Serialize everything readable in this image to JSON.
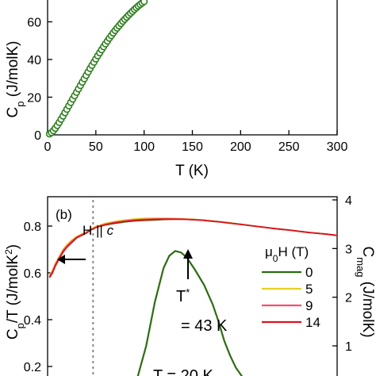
{
  "chart_data": [
    {
      "type": "scatter",
      "panel_label": "",
      "xlabel": "T (K)",
      "ylabel_main": "C",
      "ylabel_sub": "p",
      "ylabel_rest": " (J/molK)",
      "ylabel_visible": "C",
      "xlim": [
        0,
        300
      ],
      "ylim": [
        0,
        80
      ],
      "x_ticks": [
        0,
        50,
        100,
        150,
        200,
        250,
        300
      ],
      "y_ticks": [
        0,
        20,
        40,
        60
      ],
      "marker_color": "#2e7d1e",
      "series": [
        {
          "x": [
            2,
            4,
            6,
            8,
            10,
            12,
            14,
            16,
            18,
            20,
            22,
            24,
            26,
            28,
            30,
            32,
            34,
            36,
            38,
            40,
            42,
            44,
            46,
            48,
            50,
            52,
            54,
            56,
            58,
            60,
            62,
            64,
            66,
            68,
            70,
            72,
            74,
            76,
            78,
            80,
            82,
            84,
            86,
            88,
            90,
            92,
            94,
            96,
            98,
            100
          ],
          "y": [
            0.5,
            1.2,
            2.2,
            3.5,
            5.0,
            6.6,
            8.3,
            10.0,
            11.8,
            13.6,
            15.4,
            17.2,
            19.0,
            20.8,
            22.6,
            24.4,
            26.2,
            28.0,
            29.8,
            31.6,
            33.4,
            35.2,
            36.9,
            38.6,
            40.3,
            42.0,
            43.6,
            45.2,
            46.8,
            48.3,
            49.8,
            51.3,
            52.7,
            54.1,
            55.4,
            56.7,
            57.9,
            59.1,
            60.3,
            61.4,
            62.5,
            63.6,
            64.6,
            65.6,
            66.6,
            67.5,
            68.4,
            69.2,
            70.0,
            70.8
          ]
        }
      ]
    },
    {
      "type": "line",
      "panel_label": "(b)",
      "field_label_prefix": "H || ",
      "field_label_axis": "c",
      "xlim": [
        0,
        300
      ],
      "ylim": [
        0.1,
        0.9
      ],
      "y2lim": [
        0,
        4
      ],
      "y_ticks": [
        0.2,
        0.4,
        0.6,
        0.8
      ],
      "y2_ticks": [
        1,
        2,
        3,
        4
      ],
      "ylabel": "C_p/T (J/molK^2)",
      "ylabel_visible": "C",
      "y2label": "C_mag (J/molK)",
      "y2label_visible": "C",
      "legend_title": "μ0H (T)",
      "legend_position": "right",
      "dashed_line_x": 43,
      "annotation_arrow": "T*",
      "annotation_arrow_sup": "*",
      "annotation_arrow_main": "T",
      "annotation_value": "= 43 K",
      "annotation_bottom": "T = 20 K",
      "x": [
        2,
        5,
        8,
        12,
        16,
        20,
        25,
        30,
        35,
        40,
        45,
        50,
        55,
        60,
        70,
        80,
        90,
        100,
        110,
        120,
        130,
        140,
        150,
        160,
        170,
        180,
        190,
        200,
        210,
        220,
        230,
        240,
        250,
        260,
        270,
        280,
        290,
        300
      ],
      "series": [
        {
          "name": "0",
          "color": "#2e6b14",
          "values": [
            0.58,
            0.6,
            0.63,
            0.66,
            0.69,
            0.71,
            0.73,
            0.75,
            0.76,
            0.77,
            0.785,
            0.795,
            0.8,
            0.805,
            0.812,
            0.818,
            0.822,
            0.824,
            0.826,
            0.828,
            0.829,
            0.829,
            0.828,
            0.826,
            0.822,
            0.818,
            0.813,
            0.808,
            0.802,
            0.797,
            0.792,
            0.787,
            0.783,
            0.778,
            0.773,
            0.769,
            0.765,
            0.76
          ]
        },
        {
          "name": "5",
          "color": "#e6d020",
          "values": [
            0.59,
            0.61,
            0.64,
            0.67,
            0.7,
            0.72,
            0.74,
            0.755,
            0.765,
            0.775,
            0.788,
            0.798,
            0.805,
            0.812,
            0.82,
            0.826,
            0.83,
            0.833,
            0.834,
            0.834,
            0.833,
            0.831,
            0.829,
            0.826,
            0.822,
            0.818,
            0.813,
            0.808,
            0.802,
            0.797,
            0.792,
            0.787,
            0.783,
            0.778,
            0.773,
            0.769,
            0.765,
            0.76
          ]
        },
        {
          "name": "9",
          "color": "#f0506e",
          "values": [
            0.585,
            0.605,
            0.635,
            0.665,
            0.695,
            0.715,
            0.735,
            0.752,
            0.763,
            0.772,
            0.785,
            0.795,
            0.802,
            0.808,
            0.816,
            0.822,
            0.826,
            0.829,
            0.83,
            0.831,
            0.831,
            0.83,
            0.828,
            0.825,
            0.821,
            0.817,
            0.812,
            0.807,
            0.802,
            0.797,
            0.792,
            0.787,
            0.783,
            0.778,
            0.773,
            0.769,
            0.765,
            0.76
          ]
        },
        {
          "name": "14",
          "color": "#d8141e",
          "values": [
            0.58,
            0.6,
            0.63,
            0.66,
            0.69,
            0.71,
            0.73,
            0.75,
            0.76,
            0.77,
            0.784,
            0.794,
            0.8,
            0.806,
            0.814,
            0.82,
            0.824,
            0.826,
            0.828,
            0.829,
            0.829,
            0.829,
            0.827,
            0.825,
            0.821,
            0.817,
            0.812,
            0.807,
            0.802,
            0.797,
            0.792,
            0.787,
            0.783,
            0.778,
            0.773,
            0.769,
            0.765,
            0.76
          ]
        }
      ],
      "cmag": {
        "name": "C_mag",
        "color": "#2e6b14",
        "x": [
          28,
          30,
          33,
          36,
          39,
          41,
          43,
          45,
          47,
          50,
          53,
          56,
          58,
          60,
          62,
          64,
          66,
          68,
          70,
          72,
          74,
          76,
          78
        ],
        "values": [
          0.05,
          0.35,
          1.0,
          1.9,
          2.6,
          2.85,
          2.95,
          2.92,
          2.82,
          2.55,
          2.25,
          1.85,
          1.5,
          1.1,
          0.8,
          0.55,
          0.38,
          0.25,
          0.15,
          0.08,
          0.04,
          0.02,
          0.01
        ]
      }
    }
  ]
}
